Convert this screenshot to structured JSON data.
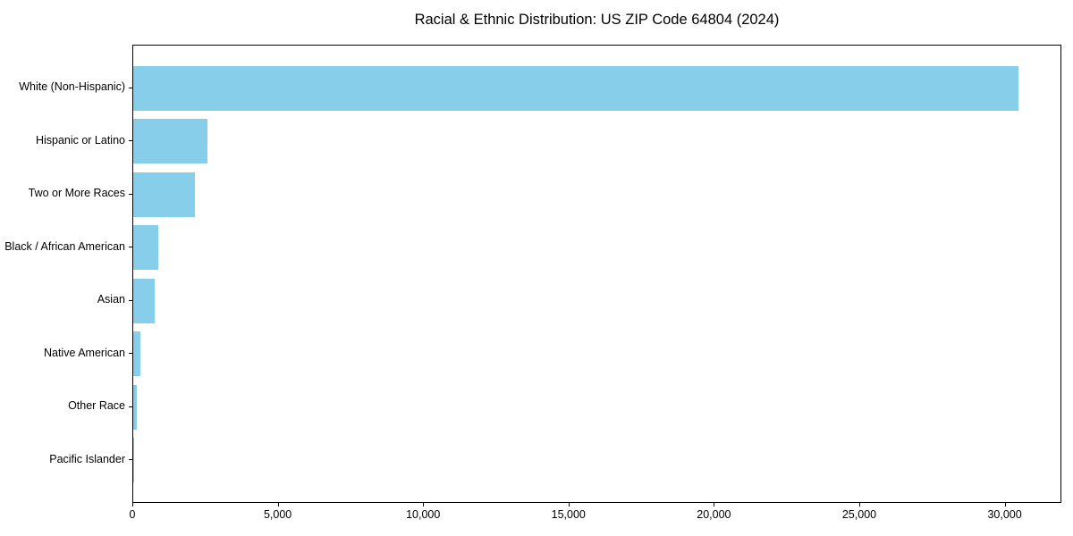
{
  "title": "Racial & Ethnic Distribution: US ZIP Code 64804 (2024)",
  "chart_data": {
    "type": "bar",
    "orientation": "horizontal",
    "title": "Racial & Ethnic Distribution: US ZIP Code 64804 (2024)",
    "xlabel": "",
    "ylabel": "",
    "categories": [
      "White (Non-Hispanic)",
      "Hispanic or Latino",
      "Two or More Races",
      "Black / African American",
      "Asian",
      "Native American",
      "Other Race",
      "Pacific Islander"
    ],
    "values": [
      30430,
      2540,
      2110,
      870,
      730,
      250,
      120,
      25
    ],
    "xlim": [
      0,
      31950
    ],
    "xticks": [
      0,
      5000,
      10000,
      15000,
      20000,
      25000,
      30000
    ],
    "xtick_labels": [
      "0",
      "5,000",
      "10,000",
      "15,000",
      "20,000",
      "25,000",
      "30,000"
    ],
    "bar_color": "#87ceeb",
    "axis_color": "#000000",
    "background_color": "#ffffff",
    "grid": false,
    "legend": null
  }
}
